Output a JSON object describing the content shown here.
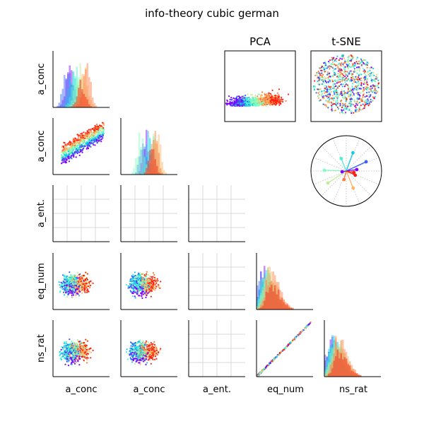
{
  "figure": {
    "title": "info-theory cubic german"
  },
  "chart_data": {
    "type": "scatter",
    "title": "info-theory cubic german",
    "variables": [
      "a_conc",
      "a_conc",
      "a_ent.",
      "eq_num",
      "ns_rat"
    ],
    "row_labels": [
      "a_conc",
      "a_conc",
      "a_ent.",
      "eq_num",
      "ns_rat"
    ],
    "col_labels": [
      "a_conc",
      "a_conc",
      "a_ent.",
      "eq_num",
      "ns_rat"
    ],
    "embeddings": [
      {
        "title": "PCA"
      },
      {
        "title": "t-SNE"
      }
    ],
    "class_colors": [
      "#8000ff",
      "#3a62fb",
      "#12c9e8",
      "#4cf2ce",
      "#7ffec0",
      "#c2eb9a",
      "#ffb360",
      "#ff7a3e",
      "#ff1f10"
    ],
    "radial_spokes": [
      {
        "angle_deg": 25,
        "length": 0.62,
        "color": "#3a62fb"
      },
      {
        "angle_deg": 70,
        "length": 0.55,
        "color": "#12c9e8"
      },
      {
        "angle_deg": 112,
        "length": 0.38,
        "color": "#4cf2ce"
      },
      {
        "angle_deg": 178,
        "length": 0.62,
        "color": "#7ffec0"
      },
      {
        "angle_deg": 213,
        "length": 0.62,
        "color": "#c2eb9a"
      },
      {
        "angle_deg": 255,
        "length": 0.25,
        "color": "#ff7a3e"
      },
      {
        "angle_deg": 292,
        "length": 0.52,
        "color": "#ffb360"
      },
      {
        "angle_deg": 8,
        "length": 0.3,
        "color": "#8000ff"
      },
      {
        "angle_deg": 335,
        "length": 0.28,
        "color": "#ff1f10"
      },
      {
        "angle_deg": 350,
        "length": 0.22,
        "color": "#ff1f10"
      },
      {
        "angle_deg": 190,
        "length": 0.12,
        "color": "#8000ff"
      }
    ],
    "grid": true,
    "legend": "none"
  }
}
